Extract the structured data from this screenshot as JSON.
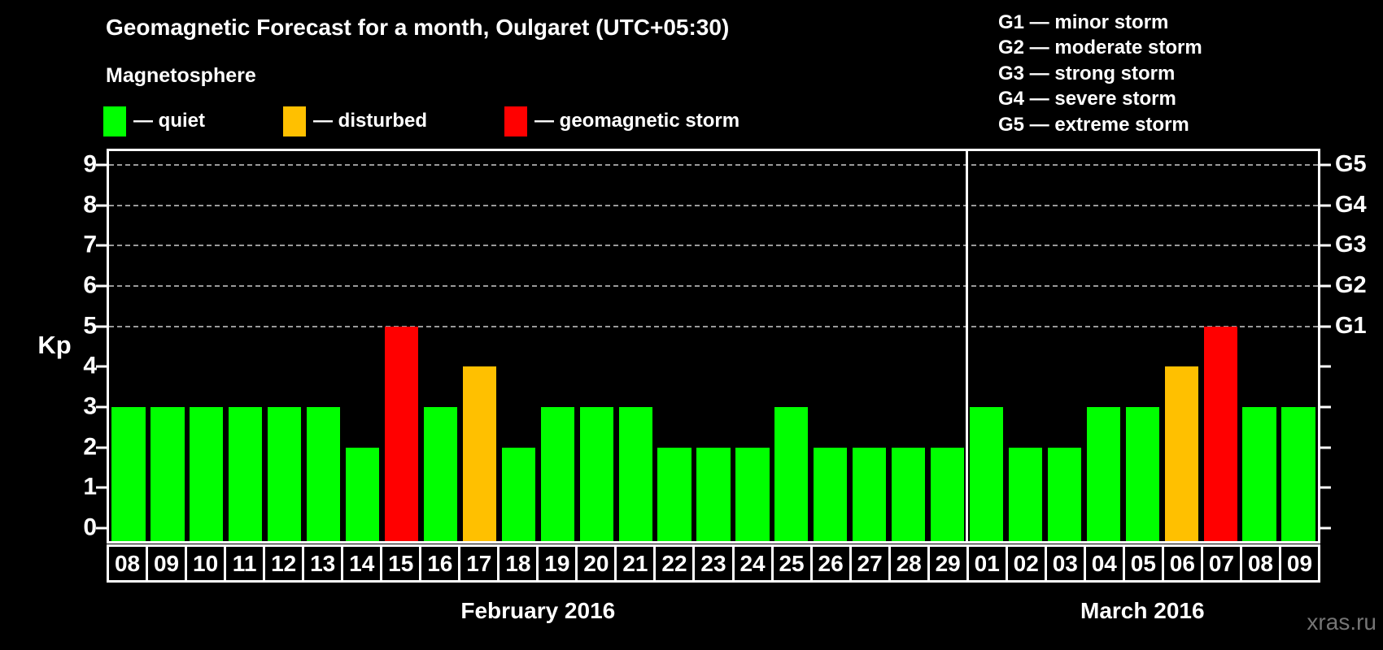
{
  "title": "Geomagnetic Forecast for a month, Oulgaret (UTC+05:30)",
  "subtitle": "Magnetosphere",
  "legend": {
    "items": [
      {
        "key": "quiet",
        "label": "— quiet",
        "color": "#00ff00"
      },
      {
        "key": "disturbed",
        "label": "— disturbed",
        "color": "#ffc000"
      },
      {
        "key": "storm",
        "label": "— geomagnetic storm",
        "color": "#ff0000"
      }
    ]
  },
  "g_legend": {
    "lines": [
      "G1 — minor storm",
      "G2 — moderate storm",
      "G3 — strong storm",
      "G4 — severe storm",
      "G5 — extreme storm"
    ]
  },
  "watermark": "xras.ru",
  "chart_data": {
    "type": "bar",
    "ylabel": "Kp",
    "ylim": [
      0,
      9
    ],
    "y_ticks": [
      0,
      1,
      2,
      3,
      4,
      5,
      6,
      7,
      8,
      9
    ],
    "gridlines_at": [
      5,
      6,
      7,
      8,
      9
    ],
    "grid": "dashed",
    "right_axis_labels": [
      {
        "value": 5,
        "label": "G1"
      },
      {
        "value": 6,
        "label": "G2"
      },
      {
        "value": 7,
        "label": "G3"
      },
      {
        "value": 8,
        "label": "G4"
      },
      {
        "value": 9,
        "label": "G5"
      }
    ],
    "status_colors": {
      "quiet": "#00ff00",
      "disturbed": "#ffc000",
      "storm": "#ff0000"
    },
    "months": [
      {
        "label": "February 2016",
        "entries": [
          {
            "day": "08",
            "kp": 3,
            "status": "quiet"
          },
          {
            "day": "09",
            "kp": 3,
            "status": "quiet"
          },
          {
            "day": "10",
            "kp": 3,
            "status": "quiet"
          },
          {
            "day": "11",
            "kp": 3,
            "status": "quiet"
          },
          {
            "day": "12",
            "kp": 3,
            "status": "quiet"
          },
          {
            "day": "13",
            "kp": 3,
            "status": "quiet"
          },
          {
            "day": "14",
            "kp": 2,
            "status": "quiet"
          },
          {
            "day": "15",
            "kp": 5,
            "status": "storm"
          },
          {
            "day": "16",
            "kp": 3,
            "status": "quiet"
          },
          {
            "day": "17",
            "kp": 4,
            "status": "disturbed"
          },
          {
            "day": "18",
            "kp": 2,
            "status": "quiet"
          },
          {
            "day": "19",
            "kp": 3,
            "status": "quiet"
          },
          {
            "day": "20",
            "kp": 3,
            "status": "quiet"
          },
          {
            "day": "21",
            "kp": 3,
            "status": "quiet"
          },
          {
            "day": "22",
            "kp": 2,
            "status": "quiet"
          },
          {
            "day": "23",
            "kp": 2,
            "status": "quiet"
          },
          {
            "day": "24",
            "kp": 2,
            "status": "quiet"
          },
          {
            "day": "25",
            "kp": 3,
            "status": "quiet"
          },
          {
            "day": "26",
            "kp": 2,
            "status": "quiet"
          },
          {
            "day": "27",
            "kp": 2,
            "status": "quiet"
          },
          {
            "day": "28",
            "kp": 2,
            "status": "quiet"
          },
          {
            "day": "29",
            "kp": 2,
            "status": "quiet"
          }
        ]
      },
      {
        "label": "March 2016",
        "entries": [
          {
            "day": "01",
            "kp": 3,
            "status": "quiet"
          },
          {
            "day": "02",
            "kp": 2,
            "status": "quiet"
          },
          {
            "day": "03",
            "kp": 2,
            "status": "quiet"
          },
          {
            "day": "04",
            "kp": 3,
            "status": "quiet"
          },
          {
            "day": "05",
            "kp": 3,
            "status": "quiet"
          },
          {
            "day": "06",
            "kp": 4,
            "status": "disturbed"
          },
          {
            "day": "07",
            "kp": 5,
            "status": "storm"
          },
          {
            "day": "08",
            "kp": 3,
            "status": "quiet"
          },
          {
            "day": "09",
            "kp": 3,
            "status": "quiet"
          }
        ]
      }
    ]
  }
}
